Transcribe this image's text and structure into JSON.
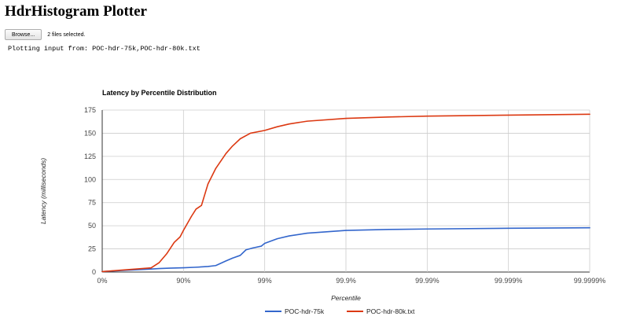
{
  "page": {
    "title": "HdrHistogram Plotter",
    "browse_label": "Browse...",
    "files_selected": "2 files selected.",
    "plotting_text": "Plotting input from: POC-hdr-75k,POC-hdr-80k.txt"
  },
  "chart_data": {
    "type": "line",
    "title": "Latency by Percentile Distribution",
    "xlabel": "Percentile",
    "ylabel": "Latency (milliseconds)",
    "x_scale": "reciprocal (1 / (1 - percentile)), log10",
    "x_ticks": [
      "0%",
      "90%",
      "99%",
      "99.9%",
      "99.99%",
      "99.999%",
      "99.9999%"
    ],
    "y_ticks": [
      "0",
      "25",
      "50",
      "75",
      "100",
      "125",
      "150",
      "175"
    ],
    "xlim": [
      "0%",
      "99.9999%"
    ],
    "ylim": [
      0,
      175
    ],
    "grid": true,
    "legend_position": "bottom",
    "series": [
      {
        "name": "POC-hdr-75k",
        "color": "#3366cc",
        "points": [
          {
            "x": "0%",
            "y": 0.5
          },
          {
            "x": "50%",
            "y": 2.0
          },
          {
            "x": "75%",
            "y": 3.2
          },
          {
            "x": "80%",
            "y": 3.8
          },
          {
            "x": "85%",
            "y": 4.2
          },
          {
            "x": "90%",
            "y": 4.6
          },
          {
            "x": "93%",
            "y": 5.2
          },
          {
            "x": "95%",
            "y": 6.0
          },
          {
            "x": "96%",
            "y": 7.0
          },
          {
            "x": "97%",
            "y": 12.0
          },
          {
            "x": "97.5%",
            "y": 15.0
          },
          {
            "x": "98%",
            "y": 18.0
          },
          {
            "x": "98.3%",
            "y": 24.0
          },
          {
            "x": "98.6%",
            "y": 26.0
          },
          {
            "x": "98.9%",
            "y": 28.0
          },
          {
            "x": "99%",
            "y": 31.0
          },
          {
            "x": "99.3%",
            "y": 36.0
          },
          {
            "x": "99.5%",
            "y": 39.0
          },
          {
            "x": "99.7%",
            "y": 42.0
          },
          {
            "x": "99.9%",
            "y": 45.0
          },
          {
            "x": "99.97%",
            "y": 46.0
          },
          {
            "x": "99.99%",
            "y": 46.5
          },
          {
            "x": "99.999%",
            "y": 47.3
          },
          {
            "x": "99.9999%",
            "y": 47.8
          }
        ]
      },
      {
        "name": "POC-hdr-80k.txt",
        "color": "#dc3912",
        "points": [
          {
            "x": "0%",
            "y": 0.5
          },
          {
            "x": "50%",
            "y": 2.5
          },
          {
            "x": "75%",
            "y": 4.5
          },
          {
            "x": "80%",
            "y": 10.0
          },
          {
            "x": "84%",
            "y": 20.0
          },
          {
            "x": "87%",
            "y": 32.0
          },
          {
            "x": "89%",
            "y": 38.0
          },
          {
            "x": "90%",
            "y": 45.0
          },
          {
            "x": "92%",
            "y": 60.0
          },
          {
            "x": "93%",
            "y": 68.0
          },
          {
            "x": "94%",
            "y": 72.0
          },
          {
            "x": "95%",
            "y": 95.0
          },
          {
            "x": "96%",
            "y": 112.0
          },
          {
            "x": "97%",
            "y": 128.0
          },
          {
            "x": "97.5%",
            "y": 136.0
          },
          {
            "x": "98%",
            "y": 144.0
          },
          {
            "x": "98.5%",
            "y": 150.0
          },
          {
            "x": "99%",
            "y": 153.0
          },
          {
            "x": "99.3%",
            "y": 157.0
          },
          {
            "x": "99.5%",
            "y": 160.0
          },
          {
            "x": "99.7%",
            "y": 163.0
          },
          {
            "x": "99.9%",
            "y": 166.0
          },
          {
            "x": "99.97%",
            "y": 167.5
          },
          {
            "x": "99.99%",
            "y": 168.5
          },
          {
            "x": "99.999%",
            "y": 169.5
          },
          {
            "x": "99.9999%",
            "y": 170.5
          }
        ]
      }
    ]
  }
}
